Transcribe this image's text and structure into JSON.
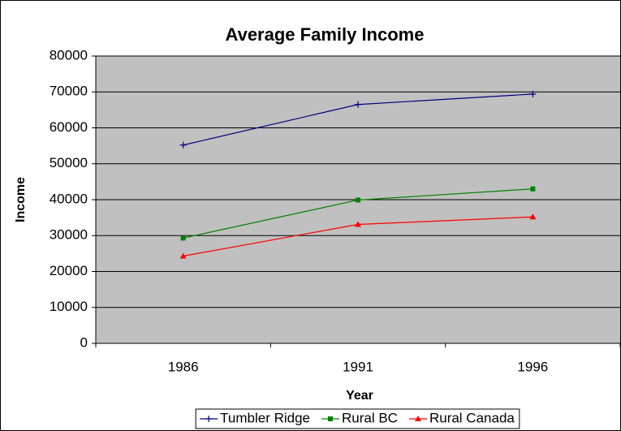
{
  "chart_data": {
    "type": "line",
    "title": "Average Family Income",
    "x_label": "Year",
    "y_label": "Income",
    "categories": [
      "1986",
      "1991",
      "1996"
    ],
    "series": [
      {
        "name": "Tumbler Ridge",
        "color": "#000080",
        "marker": "plus",
        "values": [
          55200,
          66500,
          69400
        ]
      },
      {
        "name": "Rural BC",
        "color": "#008000",
        "marker": "square",
        "values": [
          29300,
          39900,
          43000
        ]
      },
      {
        "name": "Rural Canada",
        "color": "#ff0000",
        "marker": "triangle",
        "values": [
          24300,
          33100,
          35200
        ]
      }
    ],
    "ylim": [
      0,
      80000
    ],
    "yticks": [
      0,
      10000,
      20000,
      30000,
      40000,
      50000,
      60000,
      70000,
      80000
    ],
    "grid": true,
    "legend": "bottom"
  }
}
